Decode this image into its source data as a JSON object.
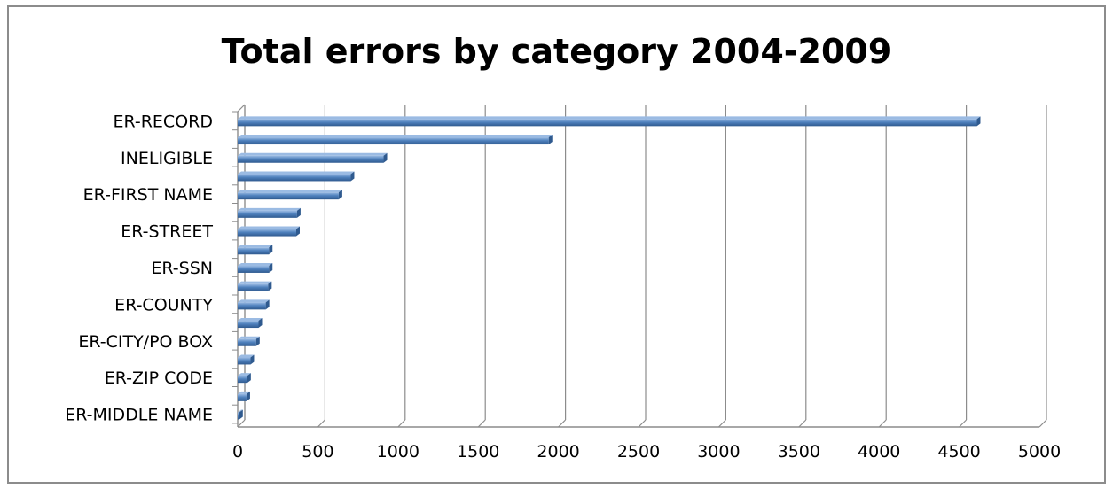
{
  "chart_data": {
    "type": "bar",
    "orientation": "horizontal",
    "title": "Total errors by category  2004-2009",
    "xlabel": "",
    "ylabel": "",
    "xlim": [
      0,
      5000
    ],
    "x_ticks": [
      0,
      500,
      1000,
      1500,
      2000,
      2500,
      3000,
      3500,
      4000,
      4500,
      5000
    ],
    "grid": true,
    "legend": "none",
    "bar_color": "#4f81bd",
    "bar_highlight": "#9bbbe3",
    "bar_shadow": "#2f5a8f",
    "grid_color": "#8c8c8c",
    "categories": [
      "ER-RECORD",
      "",
      "INELIGIBLE",
      "",
      "ER-FIRST NAME",
      "",
      "ER-STREET",
      "",
      "ER-SSN",
      "",
      "ER-COUNTY",
      "",
      "ER-CITY/PO BOX",
      "",
      "ER-ZIP CODE",
      "",
      "ER-MIDDLE NAME"
    ],
    "values": [
      4610,
      1940,
      910,
      705,
      630,
      370,
      365,
      195,
      195,
      190,
      175,
      130,
      115,
      80,
      60,
      55,
      10
    ]
  }
}
